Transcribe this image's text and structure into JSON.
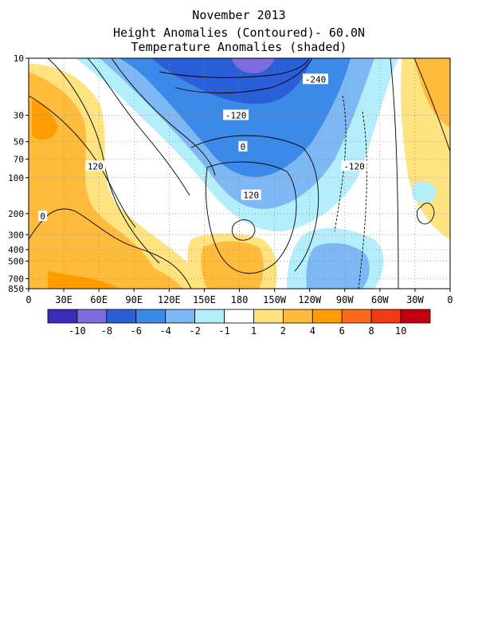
{
  "titles": {
    "line1": "November 2013",
    "line2": "Height Anomalies (Contoured)- 60.0N",
    "line3": "Temperature Anomalies (shaded)"
  },
  "chart_data": {
    "type": "heatmap",
    "title": "November 2013",
    "subtitle": [
      "Height Anomalies (Contoured)- 60.0N",
      "Temperature Anomalies (shaded)"
    ],
    "x_ticks": [
      "0",
      "30E",
      "60E",
      "90E",
      "120E",
      "150E",
      "180",
      "150W",
      "120W",
      "90W",
      "60W",
      "30W",
      "0"
    ],
    "xlim": [
      0,
      360
    ],
    "y_ticks": [
      10,
      30,
      50,
      70,
      100,
      200,
      300,
      400,
      500,
      700,
      850
    ],
    "ylim": [
      850,
      10
    ],
    "y_scale": "log",
    "grid": true,
    "contour_labels": [
      {
        "text": "-240",
        "lon": 245,
        "p": 15
      },
      {
        "text": "-120",
        "lon": 177,
        "p": 30
      },
      {
        "text": "-120",
        "lon": 278,
        "p": 80
      },
      {
        "text": "0",
        "lon": 183,
        "p": 55
      },
      {
        "text": "120",
        "lon": 57,
        "p": 80
      },
      {
        "text": "120",
        "lon": 190,
        "p": 140
      },
      {
        "text": "0",
        "lon": 12,
        "p": 210
      }
    ],
    "colorbar": {
      "labels": [
        "-10",
        "-8",
        "-6",
        "-4",
        "-2",
        "-1",
        "1",
        "2",
        "4",
        "6",
        "8",
        "10"
      ],
      "colors": [
        "#3a2bb8",
        "#7e6cdd",
        "#2a5fd8",
        "#3c8ae8",
        "#7db8f4",
        "#b4eefa",
        "#ffffff",
        "#ffe380",
        "#ffbb3c",
        "#ff9c00",
        "#ff6a1a",
        "#f13a16",
        "#c30010"
      ]
    }
  }
}
